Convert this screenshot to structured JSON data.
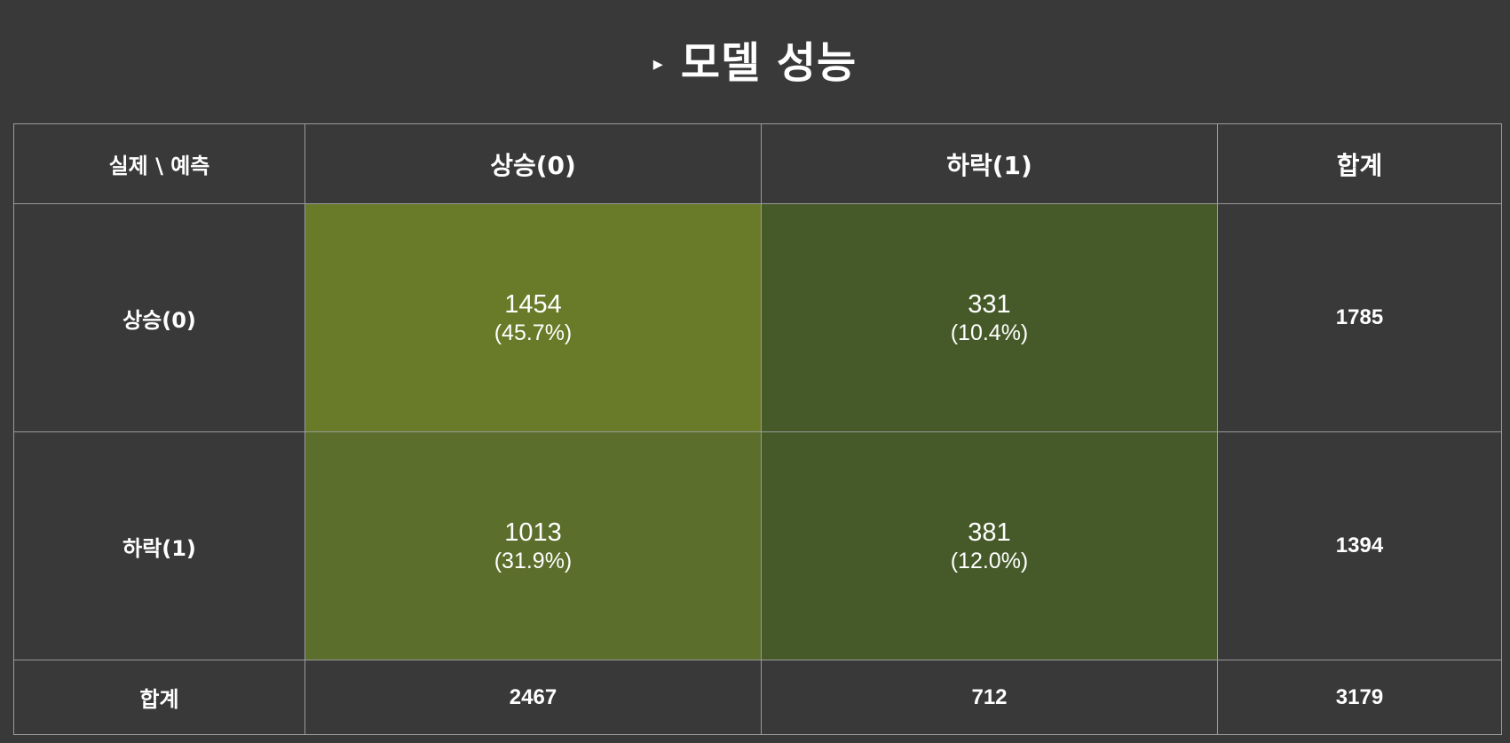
{
  "title": {
    "marker": "▸",
    "text": "모델 성능"
  },
  "chart_data": {
    "type": "heatmap",
    "title": "모델 성능",
    "corner_label": "실제 \\ 예측",
    "columns": [
      "상승(0)",
      "하락(1)"
    ],
    "rows": [
      "상승(0)",
      "하락(1)"
    ],
    "values": [
      [
        1454,
        331
      ],
      [
        1013,
        381
      ]
    ],
    "percents": [
      [
        "(45.7%)",
        "(10.4%)"
      ],
      [
        "(31.9%)",
        "(12.0%)"
      ]
    ],
    "cell_colors": [
      [
        "#697a28",
        "#455a28"
      ],
      [
        "#5b6e2b",
        "#465a29"
      ]
    ],
    "total_label": "합계",
    "row_totals": [
      1785,
      1394
    ],
    "col_totals": [
      2467,
      712
    ],
    "grand_total": 3179
  },
  "colors": {
    "background": "#393939",
    "border": "#9a9a9a",
    "text": "#ffffff"
  }
}
